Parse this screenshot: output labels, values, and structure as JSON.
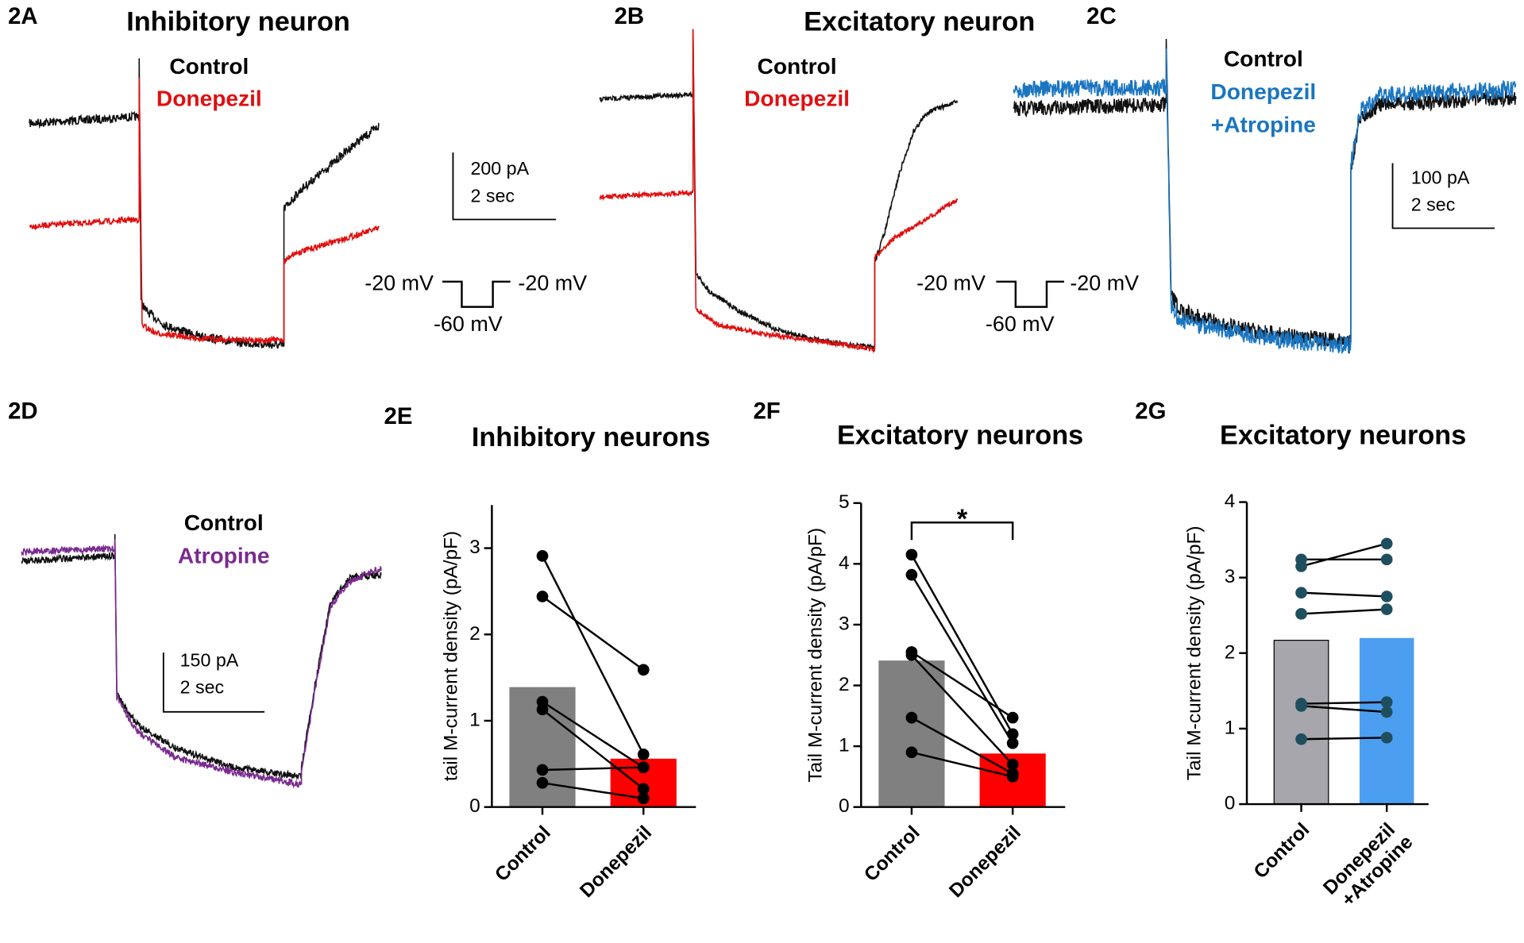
{
  "panels": [
    {
      "label": "2A",
      "title": "Inhibitory neuron",
      "legend": [
        "Control",
        "Donepezil"
      ],
      "scale": [
        "200 pA",
        "2 sec"
      ]
    },
    {
      "label": "2B",
      "title": "Excitatory neuron",
      "legend": [
        "Control",
        "Donepezil"
      ]
    },
    {
      "label": "2C",
      "legend": [
        "Control",
        "Donepezil",
        "+Atropine"
      ],
      "scale": [
        "100 pA",
        "2 sec"
      ]
    },
    {
      "label": "2D",
      "legend": [
        "Control",
        "Atropine"
      ],
      "scale": [
        "150 pA",
        "2 sec"
      ]
    }
  ],
  "protocols": [
    {
      "left": "-20 mV",
      "right": "-20 mV",
      "bottom": "-60 mV"
    },
    {
      "left": "-20 mV",
      "right": "-20 mV",
      "bottom": "-60 mV"
    }
  ],
  "chart_data": [
    {
      "type": "bar",
      "label": "2E",
      "title": "Inhibitory neurons",
      "ylabel": "tail M-current density (pA/pF)",
      "categories": [
        "Control",
        "Donepezil"
      ],
      "values": [
        1.39,
        0.56
      ],
      "colors": [
        "#808080",
        "#ff0000"
      ],
      "points": [
        [
          2.91,
          2.44,
          1.22,
          1.13,
          0.43,
          0.28
        ],
        [
          0.61,
          1.59,
          0.46,
          0.21,
          0.46,
          0.1
        ]
      ],
      "point_color": "#000000",
      "ylim": [
        0,
        3.5
      ],
      "yticks": [
        0,
        1,
        2,
        3
      ]
    },
    {
      "type": "bar",
      "label": "2F",
      "title": "Excitatory neurons",
      "ylabel": "Tail M-current density (pA/pF)",
      "categories": [
        "Control",
        "Donepezil"
      ],
      "values": [
        2.41,
        0.88
      ],
      "colors": [
        "#808080",
        "#ff0000"
      ],
      "points": [
        [
          4.15,
          3.82,
          2.55,
          2.5,
          1.47,
          0.9
        ],
        [
          1.2,
          1.05,
          1.47,
          0.7,
          0.55,
          0.5
        ]
      ],
      "point_color": "#000000",
      "annotation": "*",
      "ylim": [
        0,
        5
      ],
      "yticks": [
        0,
        1,
        2,
        3,
        4,
        5
      ]
    },
    {
      "type": "bar",
      "label": "2G",
      "title": "Excitatory neurons",
      "ylabel": "Tail M-current density (pA/pF)",
      "categories": [
        "Control",
        "Donepezil\n+Atropine"
      ],
      "values": [
        2.17,
        2.2
      ],
      "colors": [
        "#a6a6ac",
        "#4c9ff0"
      ],
      "points": [
        [
          3.24,
          3.15,
          2.8,
          2.52,
          1.33,
          1.3,
          0.86
        ],
        [
          3.24,
          3.45,
          2.75,
          2.58,
          1.35,
          1.22,
          0.88
        ]
      ],
      "point_color": "#1f4f5f",
      "ylim": [
        0,
        4
      ],
      "yticks": [
        0,
        1,
        2,
        3,
        4
      ]
    }
  ]
}
